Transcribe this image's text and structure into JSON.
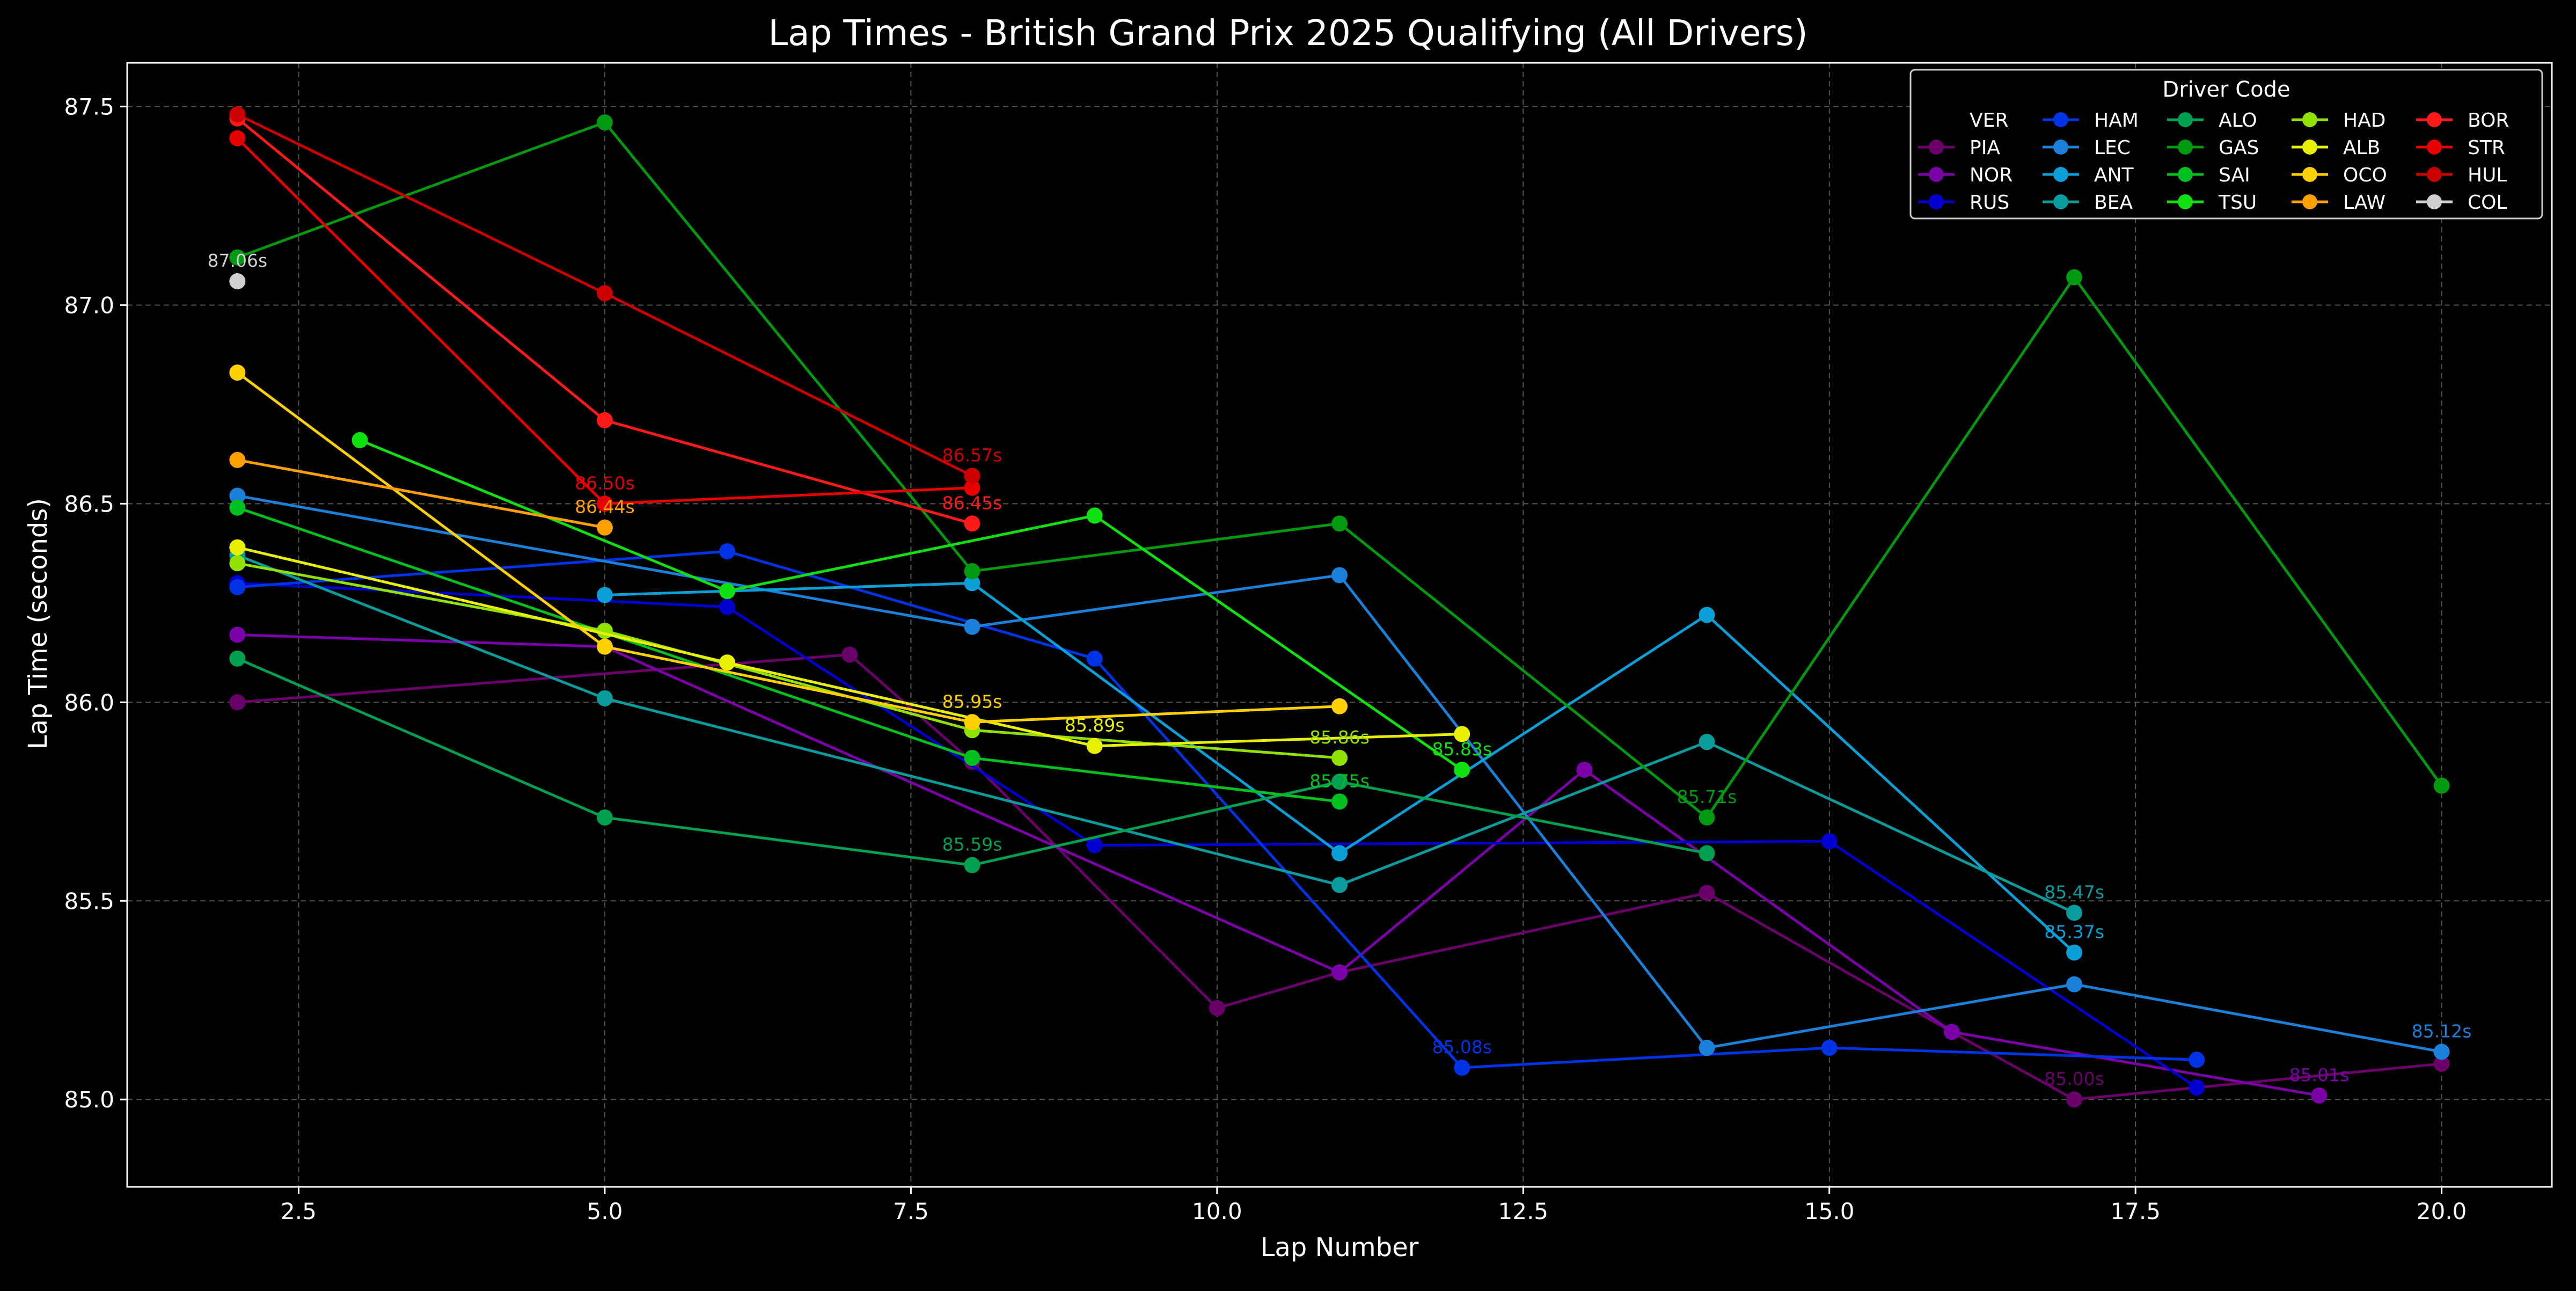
{
  "chart_data": {
    "type": "line",
    "title": "Lap Times - British Grand Prix 2025 Qualifying (All Drivers)",
    "xlabel": "Lap Number",
    "ylabel": "Lap Time (seconds)",
    "xlim": [
      1.1,
      20.9
    ],
    "ylim": [
      84.78,
      87.61
    ],
    "xticks": [
      2.5,
      5.0,
      7.5,
      10.0,
      12.5,
      15.0,
      17.5,
      20.0
    ],
    "xtick_labels": [
      "2.5",
      "5.0",
      "7.5",
      "10.0",
      "12.5",
      "15.0",
      "17.5",
      "20.0"
    ],
    "yticks": [
      85.0,
      85.5,
      86.0,
      86.5,
      87.0,
      87.5
    ],
    "ytick_labels": [
      "85.0",
      "85.5",
      "86.0",
      "86.5",
      "87.0",
      "87.5"
    ],
    "grid": true,
    "legend_title": "Driver Code",
    "legend_position": "top-right",
    "series": [
      {
        "name": "VER",
        "color": "#000000",
        "points": []
      },
      {
        "name": "PIA",
        "color": "#6a006a",
        "points": [
          [
            2,
            86.0
          ],
          [
            7,
            86.12
          ],
          [
            8,
            85.85
          ],
          [
            10,
            85.23
          ],
          [
            11,
            85.32
          ],
          [
            14,
            85.52
          ],
          [
            16,
            85.17
          ],
          [
            17,
            85.0
          ],
          [
            18,
            85.03
          ],
          [
            20,
            85.09
          ]
        ]
      },
      {
        "name": "NOR",
        "color": "#7b00a8",
        "points": [
          [
            2,
            86.17
          ],
          [
            5,
            86.14
          ],
          [
            11,
            85.32
          ],
          [
            13,
            85.83
          ],
          [
            16,
            85.17
          ],
          [
            19,
            85.01
          ]
        ]
      },
      {
        "name": "RUS",
        "color": "#0000d0",
        "points": [
          [
            2,
            86.3
          ],
          [
            6,
            86.24
          ],
          [
            9,
            85.64
          ],
          [
            15,
            85.65
          ],
          [
            18,
            85.03
          ]
        ]
      },
      {
        "name": "HAM",
        "color": "#0033e6",
        "points": [
          [
            2,
            86.29
          ],
          [
            6,
            86.38
          ],
          [
            9,
            86.11
          ],
          [
            12,
            85.08
          ],
          [
            15,
            85.13
          ],
          [
            18,
            85.1
          ]
        ]
      },
      {
        "name": "LEC",
        "color": "#1a80d9",
        "points": [
          [
            2,
            86.52
          ],
          [
            8,
            86.19
          ],
          [
            11,
            86.32
          ],
          [
            14,
            85.13
          ],
          [
            17,
            85.29
          ],
          [
            20,
            85.12
          ]
        ]
      },
      {
        "name": "ANT",
        "color": "#0a9fd6",
        "points": [
          [
            5,
            86.27
          ],
          [
            8,
            86.3
          ],
          [
            11,
            85.62
          ],
          [
            14,
            86.22
          ],
          [
            17,
            85.37
          ]
        ]
      },
      {
        "name": "BEA",
        "color": "#0a9c9c",
        "points": [
          [
            2,
            86.37
          ],
          [
            5,
            86.01
          ],
          [
            11,
            85.54
          ],
          [
            14,
            85.9
          ],
          [
            17,
            85.47
          ]
        ]
      },
      {
        "name": "ALO",
        "color": "#00a050",
        "points": [
          [
            2,
            86.11
          ],
          [
            5,
            85.71
          ],
          [
            8,
            85.59
          ],
          [
            11,
            85.8
          ],
          [
            14,
            85.62
          ]
        ]
      },
      {
        "name": "GAS",
        "color": "#009910",
        "points": [
          [
            2,
            87.12
          ],
          [
            5,
            87.46
          ],
          [
            8,
            86.33
          ],
          [
            11,
            86.45
          ],
          [
            14,
            85.71
          ],
          [
            17,
            87.07
          ],
          [
            20,
            85.79
          ]
        ]
      },
      {
        "name": "SAI",
        "color": "#00c020",
        "points": [
          [
            2,
            86.49
          ],
          [
            8,
            85.86
          ],
          [
            11,
            85.75
          ]
        ]
      },
      {
        "name": "TSU",
        "color": "#10e010",
        "points": [
          [
            3,
            86.66
          ],
          [
            6,
            86.28
          ],
          [
            9,
            86.47
          ],
          [
            12,
            85.83
          ]
        ]
      },
      {
        "name": "HAD",
        "color": "#90e000",
        "points": [
          [
            2,
            86.35
          ],
          [
            5,
            86.18
          ],
          [
            8,
            85.93
          ],
          [
            11,
            85.86
          ]
        ]
      },
      {
        "name": "ALB",
        "color": "#e6f000",
        "points": [
          [
            2,
            86.39
          ],
          [
            6,
            86.1
          ],
          [
            9,
            85.89
          ],
          [
            12,
            85.92
          ]
        ]
      },
      {
        "name": "OCO",
        "color": "#ffd000",
        "points": [
          [
            2,
            86.83
          ],
          [
            5,
            86.14
          ],
          [
            8,
            85.95
          ],
          [
            11,
            85.99
          ]
        ]
      },
      {
        "name": "LAW",
        "color": "#ffa000",
        "points": [
          [
            2,
            86.61
          ],
          [
            5,
            86.44
          ]
        ]
      },
      {
        "name": "BOR",
        "color": "#ff1a1a",
        "points": [
          [
            2,
            87.47
          ],
          [
            5,
            86.71
          ],
          [
            8,
            86.45
          ]
        ]
      },
      {
        "name": "STR",
        "color": "#e60000",
        "points": [
          [
            2,
            87.42
          ],
          [
            5,
            86.5
          ],
          [
            8,
            86.54
          ]
        ]
      },
      {
        "name": "HUL",
        "color": "#cc0000",
        "points": [
          [
            2,
            87.48
          ],
          [
            5,
            87.03
          ],
          [
            8,
            86.57
          ]
        ]
      },
      {
        "name": "COL",
        "color": "#d0d0d0",
        "points": [
          [
            2,
            87.06
          ]
        ]
      }
    ],
    "annotations": [
      {
        "text": "87.06s",
        "x": 2,
        "y": 87.06,
        "color": "#d0d0d0"
      },
      {
        "text": "86.57s",
        "x": 8,
        "y": 86.57,
        "color": "#cc0000"
      },
      {
        "text": "86.50s",
        "x": 5,
        "y": 86.5,
        "color": "#e60000"
      },
      {
        "text": "86.45s",
        "x": 8,
        "y": 86.45,
        "color": "#ff1a1a"
      },
      {
        "text": "86.44s",
        "x": 5,
        "y": 86.44,
        "color": "#ffa000"
      },
      {
        "text": "85.95s",
        "x": 8,
        "y": 85.95,
        "color": "#ffd000"
      },
      {
        "text": "85.89s",
        "x": 9,
        "y": 85.89,
        "color": "#e6f000"
      },
      {
        "text": "85.86s",
        "x": 11,
        "y": 85.86,
        "color": "#90e000"
      },
      {
        "text": "85.83s",
        "x": 12,
        "y": 85.83,
        "color": "#10e010"
      },
      {
        "text": "85.75s",
        "x": 11,
        "y": 85.75,
        "color": "#00c020"
      },
      {
        "text": "85.71s",
        "x": 14,
        "y": 85.71,
        "color": "#009910"
      },
      {
        "text": "85.59s",
        "x": 8,
        "y": 85.59,
        "color": "#00a050"
      },
      {
        "text": "85.47s",
        "x": 17,
        "y": 85.47,
        "color": "#0a9c9c"
      },
      {
        "text": "85.37s",
        "x": 17,
        "y": 85.37,
        "color": "#0a9fd6"
      },
      {
        "text": "85.12s",
        "x": 20,
        "y": 85.12,
        "color": "#1a80d9"
      },
      {
        "text": "85.08s",
        "x": 12,
        "y": 85.08,
        "color": "#0033e6"
      },
      {
        "text": "85.00s",
        "x": 17,
        "y": 85.0,
        "color": "#6a006a"
      },
      {
        "text": "85.01s",
        "x": 19,
        "y": 85.01,
        "color": "#7b00a8"
      }
    ]
  }
}
